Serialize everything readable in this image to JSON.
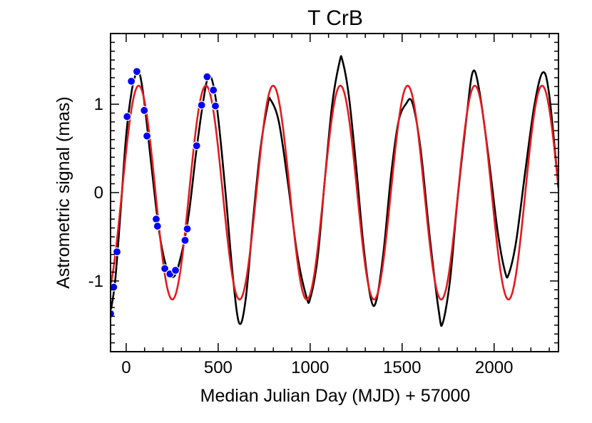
{
  "chart_data": {
    "type": "line",
    "title": "T CrB",
    "xlabel": "Median Julian Day (MJD) + 57000",
    "ylabel": "Astrometric signal  (mas)",
    "xlim": [
      -85,
      2350
    ],
    "ylim": [
      -1.8,
      1.8
    ],
    "x_ticks": [
      0,
      500,
      1000,
      1500,
      2000
    ],
    "x_tick_labels": [
      "0",
      "500",
      "1000",
      "1500",
      "2000"
    ],
    "y_ticks": [
      -1,
      0,
      1
    ],
    "y_tick_labels": [
      "-1",
      "0",
      "1"
    ],
    "grid": false,
    "legend": "none",
    "series": [
      {
        "color": "#000000",
        "style": "line",
        "x": [
          -85,
          -60,
          -30,
          0,
          30,
          55,
          75,
          100,
          140,
          180,
          220,
          260,
          300,
          340,
          380,
          420,
          445,
          470,
          500,
          540,
          580,
          615,
          650,
          690,
          730,
          770,
          785,
          830,
          880,
          930,
          980,
          1000,
          1040,
          1080,
          1120,
          1160,
          1175,
          1210,
          1250,
          1290,
          1330,
          1360,
          1400,
          1440,
          1480,
          1520,
          1555,
          1600,
          1650,
          1700,
          1720,
          1760,
          1800,
          1850,
          1885,
          1920,
          1970,
          2020,
          2060,
          2080,
          2120,
          2170,
          2220,
          2265,
          2300,
          2350
        ],
        "y": [
          -1.35,
          -1.0,
          -0.2,
          0.65,
          1.15,
          1.35,
          1.33,
          1.0,
          0.25,
          -0.45,
          -0.85,
          -0.95,
          -0.7,
          -0.25,
          0.45,
          1.05,
          1.3,
          1.25,
          0.85,
          0.0,
          -0.95,
          -1.48,
          -1.2,
          -0.3,
          0.5,
          1.0,
          1.05,
          0.8,
          0.1,
          -0.7,
          -1.18,
          -1.2,
          -0.75,
          0.15,
          1.0,
          1.48,
          1.5,
          1.1,
          0.3,
          -0.6,
          -1.2,
          -1.22,
          -0.65,
          0.2,
          0.8,
          1.0,
          1.02,
          0.5,
          -0.5,
          -1.35,
          -1.48,
          -1.0,
          -0.1,
          0.85,
          1.37,
          1.15,
          0.4,
          -0.45,
          -0.9,
          -0.92,
          -0.55,
          0.25,
          1.0,
          1.36,
          1.1,
          0.05
        ]
      },
      {
        "color": "#e41a1c",
        "style": "line",
        "function": "sine",
        "amplitude": 1.21,
        "period": 365.5,
        "phase_peak_x": 68,
        "x_range": [
          -85,
          2350
        ]
      },
      {
        "color": "#0000ff",
        "style": "markers",
        "x": [
          -85,
          -68,
          -50,
          5,
          28,
          58,
          98,
          113,
          163,
          170,
          210,
          238,
          268,
          320,
          332,
          383,
          410,
          440,
          474,
          485
        ],
        "y": [
          -1.37,
          -1.07,
          -0.67,
          0.86,
          1.26,
          1.37,
          0.93,
          0.64,
          -0.3,
          -0.38,
          -0.86,
          -0.92,
          -0.88,
          -0.54,
          -0.41,
          0.53,
          0.99,
          1.31,
          1.16,
          0.98
        ]
      }
    ]
  }
}
